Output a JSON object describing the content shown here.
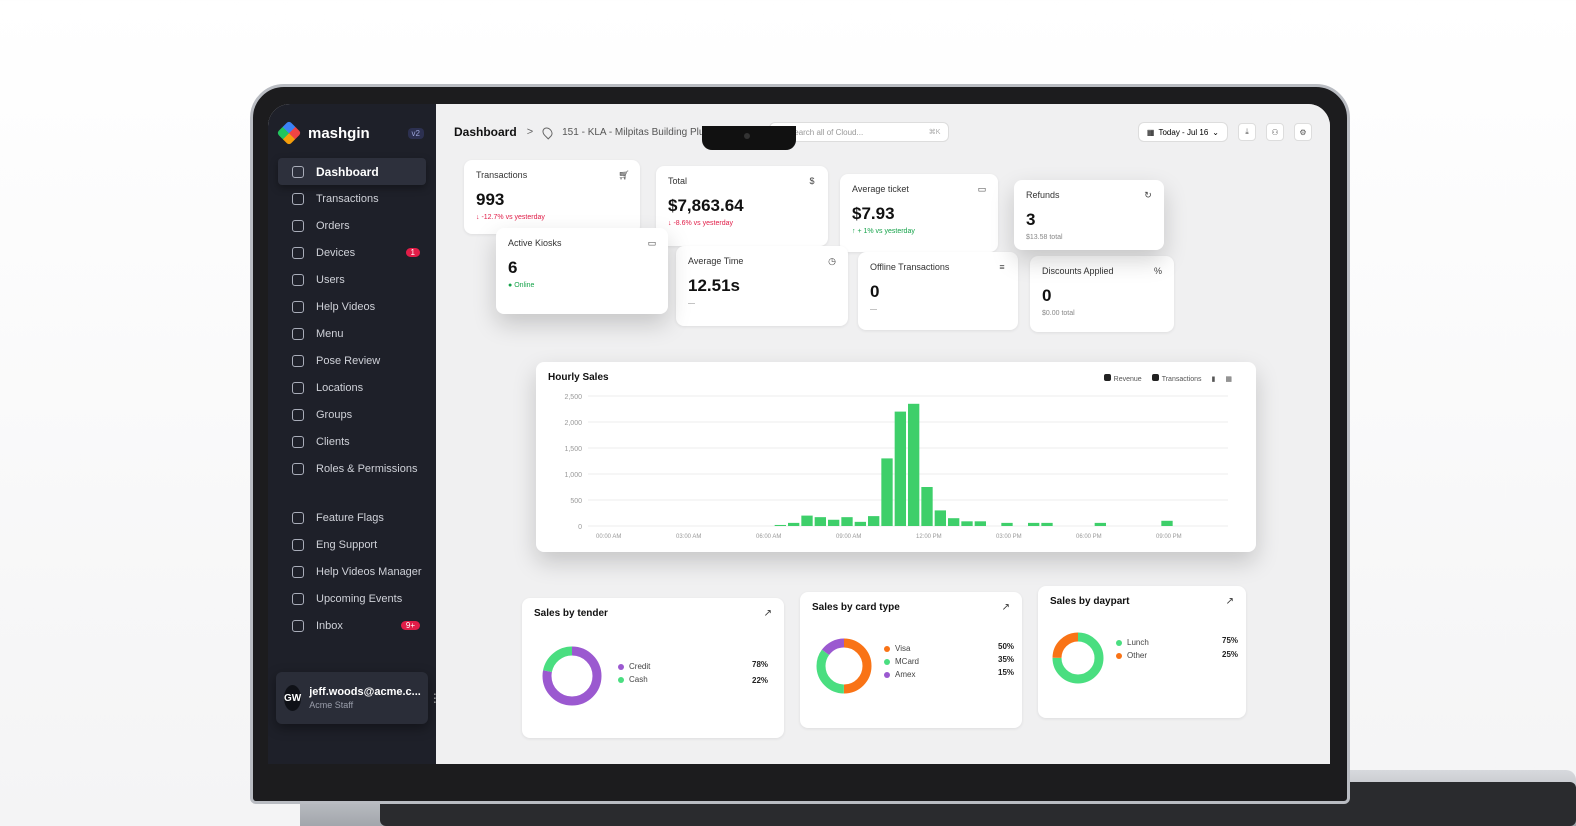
{
  "brand": {
    "name": "mashgin",
    "version": "v2"
  },
  "sidebar": {
    "items": [
      {
        "label": "Dashboard",
        "icon": "grid-icon",
        "active": true
      },
      {
        "label": "Transactions",
        "icon": "receipt-icon"
      },
      {
        "label": "Orders",
        "icon": "cart-icon"
      },
      {
        "label": "Devices",
        "icon": "laptop-icon",
        "badge": "1"
      },
      {
        "label": "Users",
        "icon": "users-icon"
      },
      {
        "label": "Help Videos",
        "icon": "play-icon"
      },
      {
        "label": "Menu",
        "icon": "book-icon"
      },
      {
        "label": "Pose Review",
        "icon": "camera-icon"
      },
      {
        "label": "Locations",
        "icon": "pin-icon"
      },
      {
        "label": "Groups",
        "icon": "folder-icon"
      },
      {
        "label": "Clients",
        "icon": "tablet-icon"
      },
      {
        "label": "Roles & Permissions",
        "icon": "shield-icon"
      }
    ],
    "admin_items": [
      {
        "label": "Feature Flags",
        "icon": "flag-icon"
      },
      {
        "label": "Eng Support",
        "icon": "car-icon"
      },
      {
        "label": "Help Videos Manager",
        "icon": "video-icon"
      },
      {
        "label": "Upcoming Events",
        "icon": "calendar-icon"
      },
      {
        "label": "Inbox",
        "icon": "mail-icon",
        "badge": "9+"
      }
    ],
    "user": {
      "initials": "GW",
      "email": "jeff.woods@acme.c...",
      "role": "Acme Staff"
    }
  },
  "topbar": {
    "breadcrumb_home": "Dashboard",
    "breadcrumb_sep": ">",
    "location": "151 - KLA - Milpitas Building Plus",
    "search_placeholder": "Search all of Cloud...",
    "search_shortcut": "⌘K",
    "date_range": "Today - Jul 16"
  },
  "kpis": {
    "transactions": {
      "title": "Transactions",
      "value": "993",
      "delta": "-12.7% vs yesterday"
    },
    "total": {
      "title": "Total",
      "value": "$7,863.64",
      "delta": "-8.6% vs yesterday"
    },
    "average_ticket": {
      "title": "Average ticket",
      "value": "$7.93",
      "delta": "+ 1% vs yesterday"
    },
    "refunds": {
      "title": "Refunds",
      "value": "3",
      "sub": "$13.58 total"
    },
    "active_kiosks": {
      "title": "Active Kiosks",
      "value": "6",
      "sub": "Online"
    },
    "average_time": {
      "title": "Average Time",
      "value": "12.51s",
      "sub": "—"
    },
    "offline_transactions": {
      "title": "Offline Transactions",
      "value": "0",
      "sub": "—"
    },
    "discounts_applied": {
      "title": "Discounts Applied",
      "value": "0",
      "sub": "$0.00 total"
    }
  },
  "hourly_sales": {
    "title": "Hourly Sales",
    "legend": [
      "Revenue",
      "Transactions"
    ],
    "bar_color": "#3ecf6a"
  },
  "chart_data": {
    "type": "bar",
    "title": "Hourly Sales",
    "x_tick_labels": [
      "00:00 AM",
      "03:00 AM",
      "06:00 AM",
      "09:00 AM",
      "12:00 PM",
      "03:00 PM",
      "06:00 PM",
      "09:00 PM"
    ],
    "y_tick_labels": [
      "0",
      "500",
      "1,000",
      "1,500",
      "2,000",
      "2,500"
    ],
    "ylim": [
      0,
      2500
    ],
    "x": [
      7,
      7.5,
      8,
      8.5,
      9,
      9.5,
      10,
      10.5,
      11,
      11.5,
      12,
      12.5,
      13,
      13.5,
      14,
      14.5,
      15.5,
      16.5,
      17,
      19,
      21.5
    ],
    "values": [
      20,
      60,
      200,
      170,
      120,
      170,
      80,
      190,
      1300,
      2200,
      2350,
      750,
      300,
      150,
      90,
      90,
      60,
      60,
      60,
      60,
      100
    ]
  },
  "tender": {
    "title": "Sales by tender",
    "items": [
      {
        "label": "Credit",
        "pct": "78%",
        "color": "#9b59d0"
      },
      {
        "label": "Cash",
        "pct": "22%",
        "color": "#4ade80"
      }
    ]
  },
  "card_type": {
    "title": "Sales by card type",
    "items": [
      {
        "label": "Visa",
        "pct": "50%",
        "color": "#f97316"
      },
      {
        "label": "MCard",
        "pct": "35%",
        "color": "#4ade80"
      },
      {
        "label": "Amex",
        "pct": "15%",
        "color": "#9b59d0"
      }
    ]
  },
  "daypart": {
    "title": "Sales by daypart",
    "items": [
      {
        "label": "Lunch",
        "pct": "75%",
        "color": "#4ade80"
      },
      {
        "label": "Other",
        "pct": "25%",
        "color": "#f97316"
      }
    ]
  }
}
